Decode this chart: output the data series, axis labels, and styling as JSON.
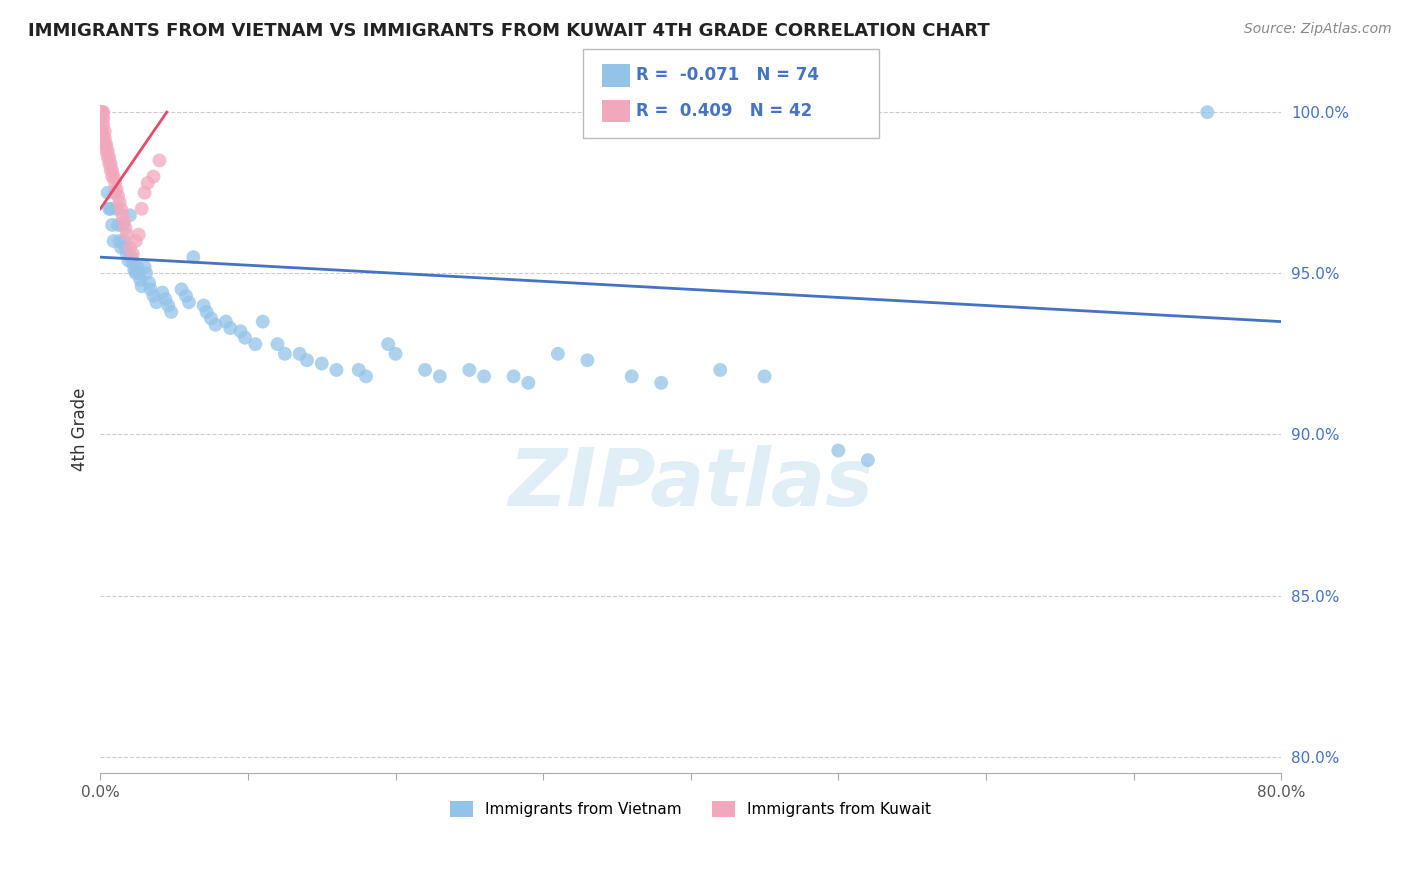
{
  "title": "IMMIGRANTS FROM VIETNAM VS IMMIGRANTS FROM KUWAIT 4TH GRADE CORRELATION CHART",
  "source": "Source: ZipAtlas.com",
  "ylabel": "4th Grade",
  "legend_series1_label": "Immigrants from Vietnam",
  "legend_series2_label": "Immigrants from Kuwait",
  "R1": -0.071,
  "N1": 74,
  "R2": 0.409,
  "N2": 42,
  "color_vietnam": "#93C4E8",
  "color_kuwait": "#F2A8BC",
  "color_line_vietnam": "#4472C4",
  "color_line_kuwait": "#E84B6A",
  "xlim": [
    0.0,
    0.8
  ],
  "ylim": [
    0.795,
    1.008
  ],
  "xtick_vals": [
    0.0,
    0.1,
    0.2,
    0.3,
    0.4,
    0.5,
    0.6,
    0.7,
    0.8
  ],
  "xtick_labels": [
    "0.0%",
    "",
    "",
    "",
    "",
    "",
    "",
    "",
    "80.0%"
  ],
  "ytick_vals": [
    0.8,
    0.85,
    0.9,
    0.95,
    1.0
  ],
  "ytick_labels": [
    "80.0%",
    "85.0%",
    "90.0%",
    "95.0%",
    "100.0%"
  ],
  "watermark": "ZIPatlas",
  "vietnam_x": [
    0.003,
    0.005,
    0.006,
    0.007,
    0.008,
    0.009,
    0.01,
    0.011,
    0.012,
    0.013,
    0.014,
    0.015,
    0.016,
    0.017,
    0.018,
    0.019,
    0.02,
    0.021,
    0.022,
    0.023,
    0.024,
    0.025,
    0.026,
    0.027,
    0.028,
    0.03,
    0.031,
    0.033,
    0.034,
    0.036,
    0.038,
    0.042,
    0.044,
    0.046,
    0.048,
    0.055,
    0.058,
    0.06,
    0.063,
    0.07,
    0.072,
    0.075,
    0.078,
    0.085,
    0.088,
    0.095,
    0.098,
    0.105,
    0.11,
    0.12,
    0.125,
    0.135,
    0.14,
    0.15,
    0.16,
    0.175,
    0.18,
    0.195,
    0.2,
    0.22,
    0.23,
    0.25,
    0.26,
    0.28,
    0.29,
    0.31,
    0.33,
    0.36,
    0.38,
    0.42,
    0.45,
    0.5,
    0.52,
    0.75
  ],
  "vietnam_y": [
    0.99,
    0.975,
    0.97,
    0.97,
    0.965,
    0.96,
    0.975,
    0.97,
    0.965,
    0.96,
    0.958,
    0.965,
    0.96,
    0.958,
    0.956,
    0.954,
    0.968,
    0.955,
    0.953,
    0.951,
    0.95,
    0.952,
    0.95,
    0.948,
    0.946,
    0.952,
    0.95,
    0.947,
    0.945,
    0.943,
    0.941,
    0.944,
    0.942,
    0.94,
    0.938,
    0.945,
    0.943,
    0.941,
    0.955,
    0.94,
    0.938,
    0.936,
    0.934,
    0.935,
    0.933,
    0.932,
    0.93,
    0.928,
    0.935,
    0.928,
    0.925,
    0.925,
    0.923,
    0.922,
    0.92,
    0.92,
    0.918,
    0.928,
    0.925,
    0.92,
    0.918,
    0.92,
    0.918,
    0.918,
    0.916,
    0.925,
    0.923,
    0.918,
    0.916,
    0.92,
    0.918,
    0.895,
    0.892,
    1.0
  ],
  "kuwait_x": [
    0.001,
    0.001,
    0.001,
    0.001,
    0.001,
    0.001,
    0.002,
    0.002,
    0.002,
    0.002,
    0.003,
    0.003,
    0.003,
    0.004,
    0.004,
    0.005,
    0.005,
    0.006,
    0.006,
    0.007,
    0.007,
    0.008,
    0.008,
    0.009,
    0.01,
    0.011,
    0.012,
    0.013,
    0.014,
    0.015,
    0.016,
    0.017,
    0.018,
    0.02,
    0.022,
    0.024,
    0.026,
    0.028,
    0.03,
    0.032,
    0.036,
    0.04
  ],
  "kuwait_y": [
    1.0,
    1.0,
    1.0,
    0.998,
    0.996,
    0.994,
    1.0,
    0.998,
    0.996,
    0.992,
    0.994,
    0.992,
    0.99,
    0.99,
    0.988,
    0.988,
    0.986,
    0.986,
    0.984,
    0.984,
    0.982,
    0.982,
    0.98,
    0.98,
    0.978,
    0.976,
    0.974,
    0.972,
    0.97,
    0.968,
    0.966,
    0.964,
    0.962,
    0.958,
    0.956,
    0.96,
    0.962,
    0.97,
    0.975,
    0.978,
    0.98,
    0.985
  ]
}
